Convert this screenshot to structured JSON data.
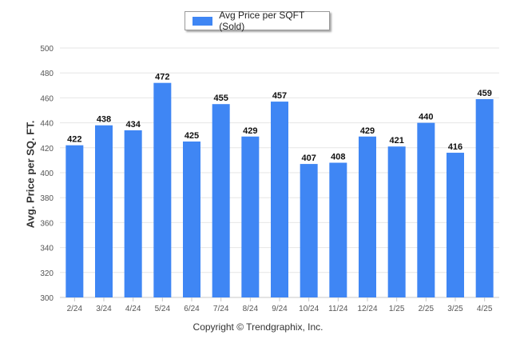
{
  "legend": {
    "label": "Avg Price per SQFT (Sold)"
  },
  "footer": {
    "copyright": "Copyright © Trendgraphix, Inc."
  },
  "chart_data": {
    "type": "bar",
    "title": "",
    "xlabel": "",
    "ylabel": "Avg. Price per SQ. FT.",
    "ylim": [
      300,
      500
    ],
    "yticks": [
      300,
      320,
      340,
      360,
      380,
      400,
      420,
      440,
      460,
      480,
      500
    ],
    "grid": true,
    "legend_position": "top-center",
    "categories": [
      "2/24",
      "3/24",
      "4/24",
      "5/24",
      "6/24",
      "7/24",
      "8/24",
      "9/24",
      "10/24",
      "11/24",
      "12/24",
      "1/25",
      "2/25",
      "3/25",
      "4/25"
    ],
    "series": [
      {
        "name": "Avg Price per SQFT (Sold)",
        "color": "#3f86f4",
        "values": [
          422,
          438,
          434,
          472,
          425,
          455,
          429,
          457,
          407,
          408,
          429,
          421,
          440,
          416,
          459
        ]
      }
    ]
  }
}
